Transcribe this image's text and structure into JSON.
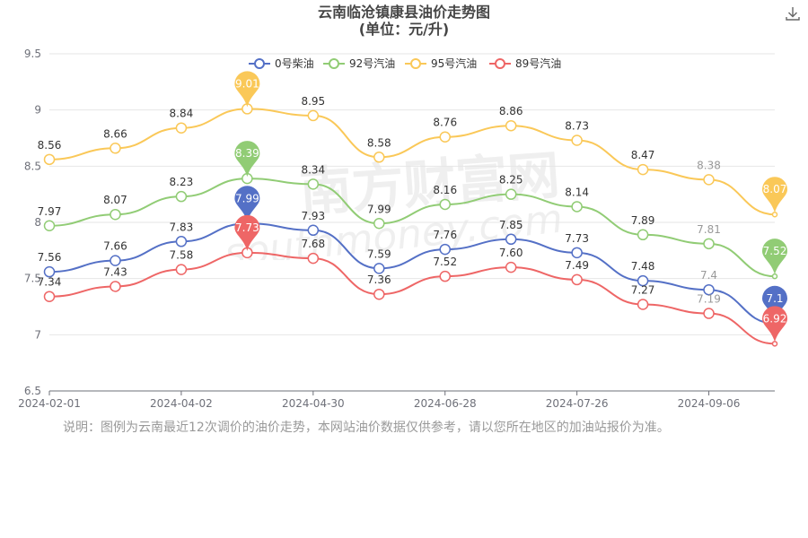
{
  "title": {
    "line1": "云南临沧镇康县油价走势图",
    "line2": "(单位：元/升)"
  },
  "note": "说明：图例为云南最近12次调价的油价走势，本网站油价数据仅供参考，请以您所在地区的加油站报价为准。",
  "watermark": {
    "cn": "南方财富网",
    "en": "southmoney.com"
  },
  "icons": {
    "download": "download-icon"
  },
  "colors": {
    "diesel0": "#5470c6",
    "gas92": "#91cc75",
    "gas95": "#fac858",
    "gas89": "#ee6666"
  },
  "chart_data": {
    "type": "line",
    "title": "云南临沧镇康县油价走势图",
    "subtitle": "(单位：元/升)",
    "xlabel": "",
    "ylabel": "",
    "ylim": [
      6.5,
      9.5
    ],
    "yticks": [
      "9.5",
      "9",
      "8.5",
      "8",
      "7.5",
      "7",
      "6.5"
    ],
    "xticks": [
      "2024-02-01",
      "2024-04-02",
      "2024-04-30",
      "2024-06-28",
      "2024-07-26",
      "2024-09-06"
    ],
    "legend_position": "top",
    "grid": true,
    "x_tick_index": [
      0,
      2,
      4,
      6,
      8,
      10
    ],
    "points": 12,
    "series": [
      {
        "name": "0号柴油",
        "color": "#5470c6",
        "values": [
          7.56,
          7.66,
          7.83,
          7.99,
          7.93,
          7.59,
          7.76,
          7.85,
          7.73,
          7.48,
          7.4,
          7.1
        ],
        "labels": [
          "7.56",
          "7.66",
          "7.83",
          "7.99",
          "7.93",
          "7.59",
          "7.76",
          "7.85",
          "7.73",
          "7.48",
          "7.4",
          "7.1"
        ]
      },
      {
        "name": "92号汽油",
        "color": "#91cc75",
        "values": [
          7.97,
          8.07,
          8.23,
          8.39,
          8.34,
          7.99,
          8.16,
          8.25,
          8.14,
          7.89,
          7.81,
          7.52
        ],
        "labels": [
          "7.97",
          "8.07",
          "8.23",
          "8.39",
          "8.34",
          "7.99",
          "8.16",
          "8.25",
          "8.14",
          "7.89",
          "7.81",
          "7.52"
        ]
      },
      {
        "name": "95号汽油",
        "color": "#fac858",
        "values": [
          8.56,
          8.66,
          8.84,
          9.01,
          8.95,
          8.58,
          8.76,
          8.86,
          8.73,
          8.47,
          8.38,
          8.07
        ],
        "labels": [
          "8.56",
          "8.66",
          "8.84",
          "9.01",
          "8.95",
          "8.58",
          "8.76",
          "8.86",
          "8.73",
          "8.47",
          "8.38",
          "8.07"
        ]
      },
      {
        "name": "89号汽油",
        "color": "#ee6666",
        "values": [
          7.34,
          7.43,
          7.58,
          7.73,
          7.68,
          7.36,
          7.52,
          7.6,
          7.49,
          7.27,
          7.19,
          6.92
        ],
        "labels": [
          "7.34",
          "7.43",
          "7.58",
          "7.73",
          "7.68",
          "7.36",
          "7.52",
          "7.60",
          "7.49",
          "7.27",
          "7.19",
          "6.92"
        ]
      }
    ]
  }
}
